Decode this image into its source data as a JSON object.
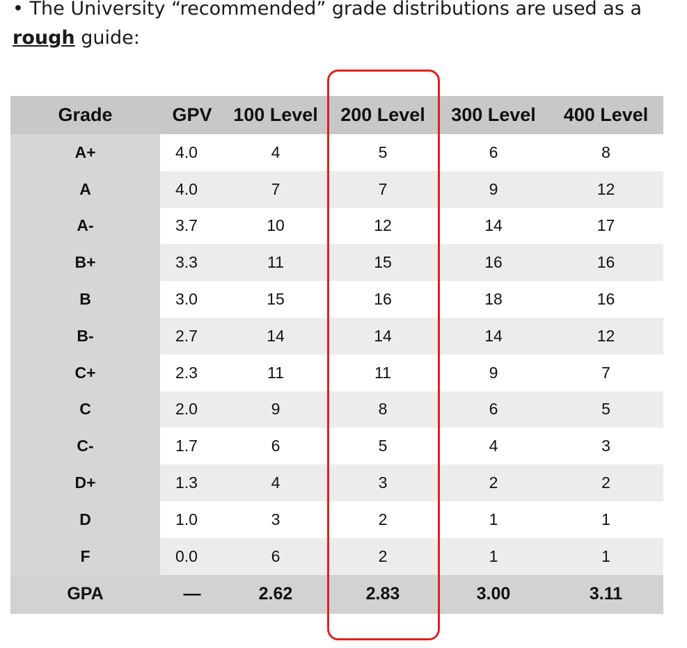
{
  "intro": {
    "bullet": "•",
    "text_before": "The University “recommended” grade distributions are used as a",
    "emphasis": "rough",
    "text_after": "guide:"
  },
  "table": {
    "headers": [
      "Grade",
      "GPV",
      "100 Level",
      "200 Level",
      "300 Level",
      "400 Level"
    ],
    "rows": [
      {
        "grade": "A+",
        "gpv": "4.0",
        "l100": "4",
        "l200": "5",
        "l300": "6",
        "l400": "8"
      },
      {
        "grade": "A",
        "gpv": "4.0",
        "l100": "7",
        "l200": "7",
        "l300": "9",
        "l400": "12"
      },
      {
        "grade": "A-",
        "gpv": "3.7",
        "l100": "10",
        "l200": "12",
        "l300": "14",
        "l400": "17"
      },
      {
        "grade": "B+",
        "gpv": "3.3",
        "l100": "11",
        "l200": "15",
        "l300": "16",
        "l400": "16"
      },
      {
        "grade": "B",
        "gpv": "3.0",
        "l100": "15",
        "l200": "16",
        "l300": "18",
        "l400": "16"
      },
      {
        "grade": "B-",
        "gpv": "2.7",
        "l100": "14",
        "l200": "14",
        "l300": "14",
        "l400": "12"
      },
      {
        "grade": "C+",
        "gpv": "2.3",
        "l100": "11",
        "l200": "11",
        "l300": "9",
        "l400": "7"
      },
      {
        "grade": "C",
        "gpv": "2.0",
        "l100": "9",
        "l200": "8",
        "l300": "6",
        "l400": "5"
      },
      {
        "grade": "C-",
        "gpv": "1.7",
        "l100": "6",
        "l200": "5",
        "l300": "4",
        "l400": "3"
      },
      {
        "grade": "D+",
        "gpv": "1.3",
        "l100": "4",
        "l200": "3",
        "l300": "2",
        "l400": "2"
      },
      {
        "grade": "D",
        "gpv": "1.0",
        "l100": "3",
        "l200": "2",
        "l300": "1",
        "l400": "1"
      },
      {
        "grade": "F",
        "gpv": "0.0",
        "l100": "6",
        "l200": "2",
        "l300": "1",
        "l400": "1"
      }
    ],
    "footer": {
      "label": "GPA",
      "gpv": "—",
      "l100": "2.62",
      "l200": "2.83",
      "l300": "3.00",
      "l400": "3.11"
    }
  },
  "highlight": {
    "column": "200 Level",
    "color": "#e02020"
  }
}
